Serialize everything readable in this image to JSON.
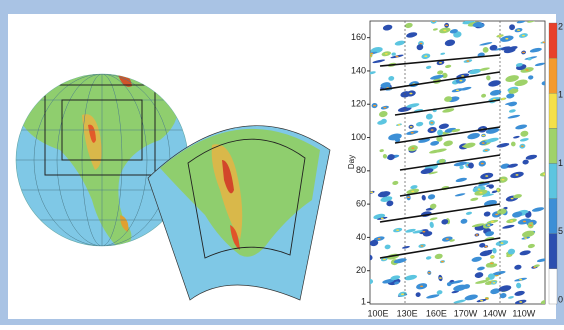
{
  "chart_data": {
    "type": "hovmoller",
    "y_label": "Day",
    "ylim": [
      0,
      170
    ],
    "yticks": [
      1,
      20,
      40,
      60,
      80,
      100,
      120,
      140,
      160
    ],
    "x_tick_labels": [
      "100E",
      "130E",
      "160E",
      "170W",
      "140W",
      "110W"
    ],
    "colorbar_labels": [
      "2",
      "1",
      "1",
      "5",
      "0"
    ],
    "colorbar_colors": [
      "#e8402a",
      "#f39a2e",
      "#f4e04a",
      "#9fd26a",
      "#5cc5e0",
      "#3c8fd6",
      "#2b4fb0",
      "#ffffff"
    ]
  }
}
